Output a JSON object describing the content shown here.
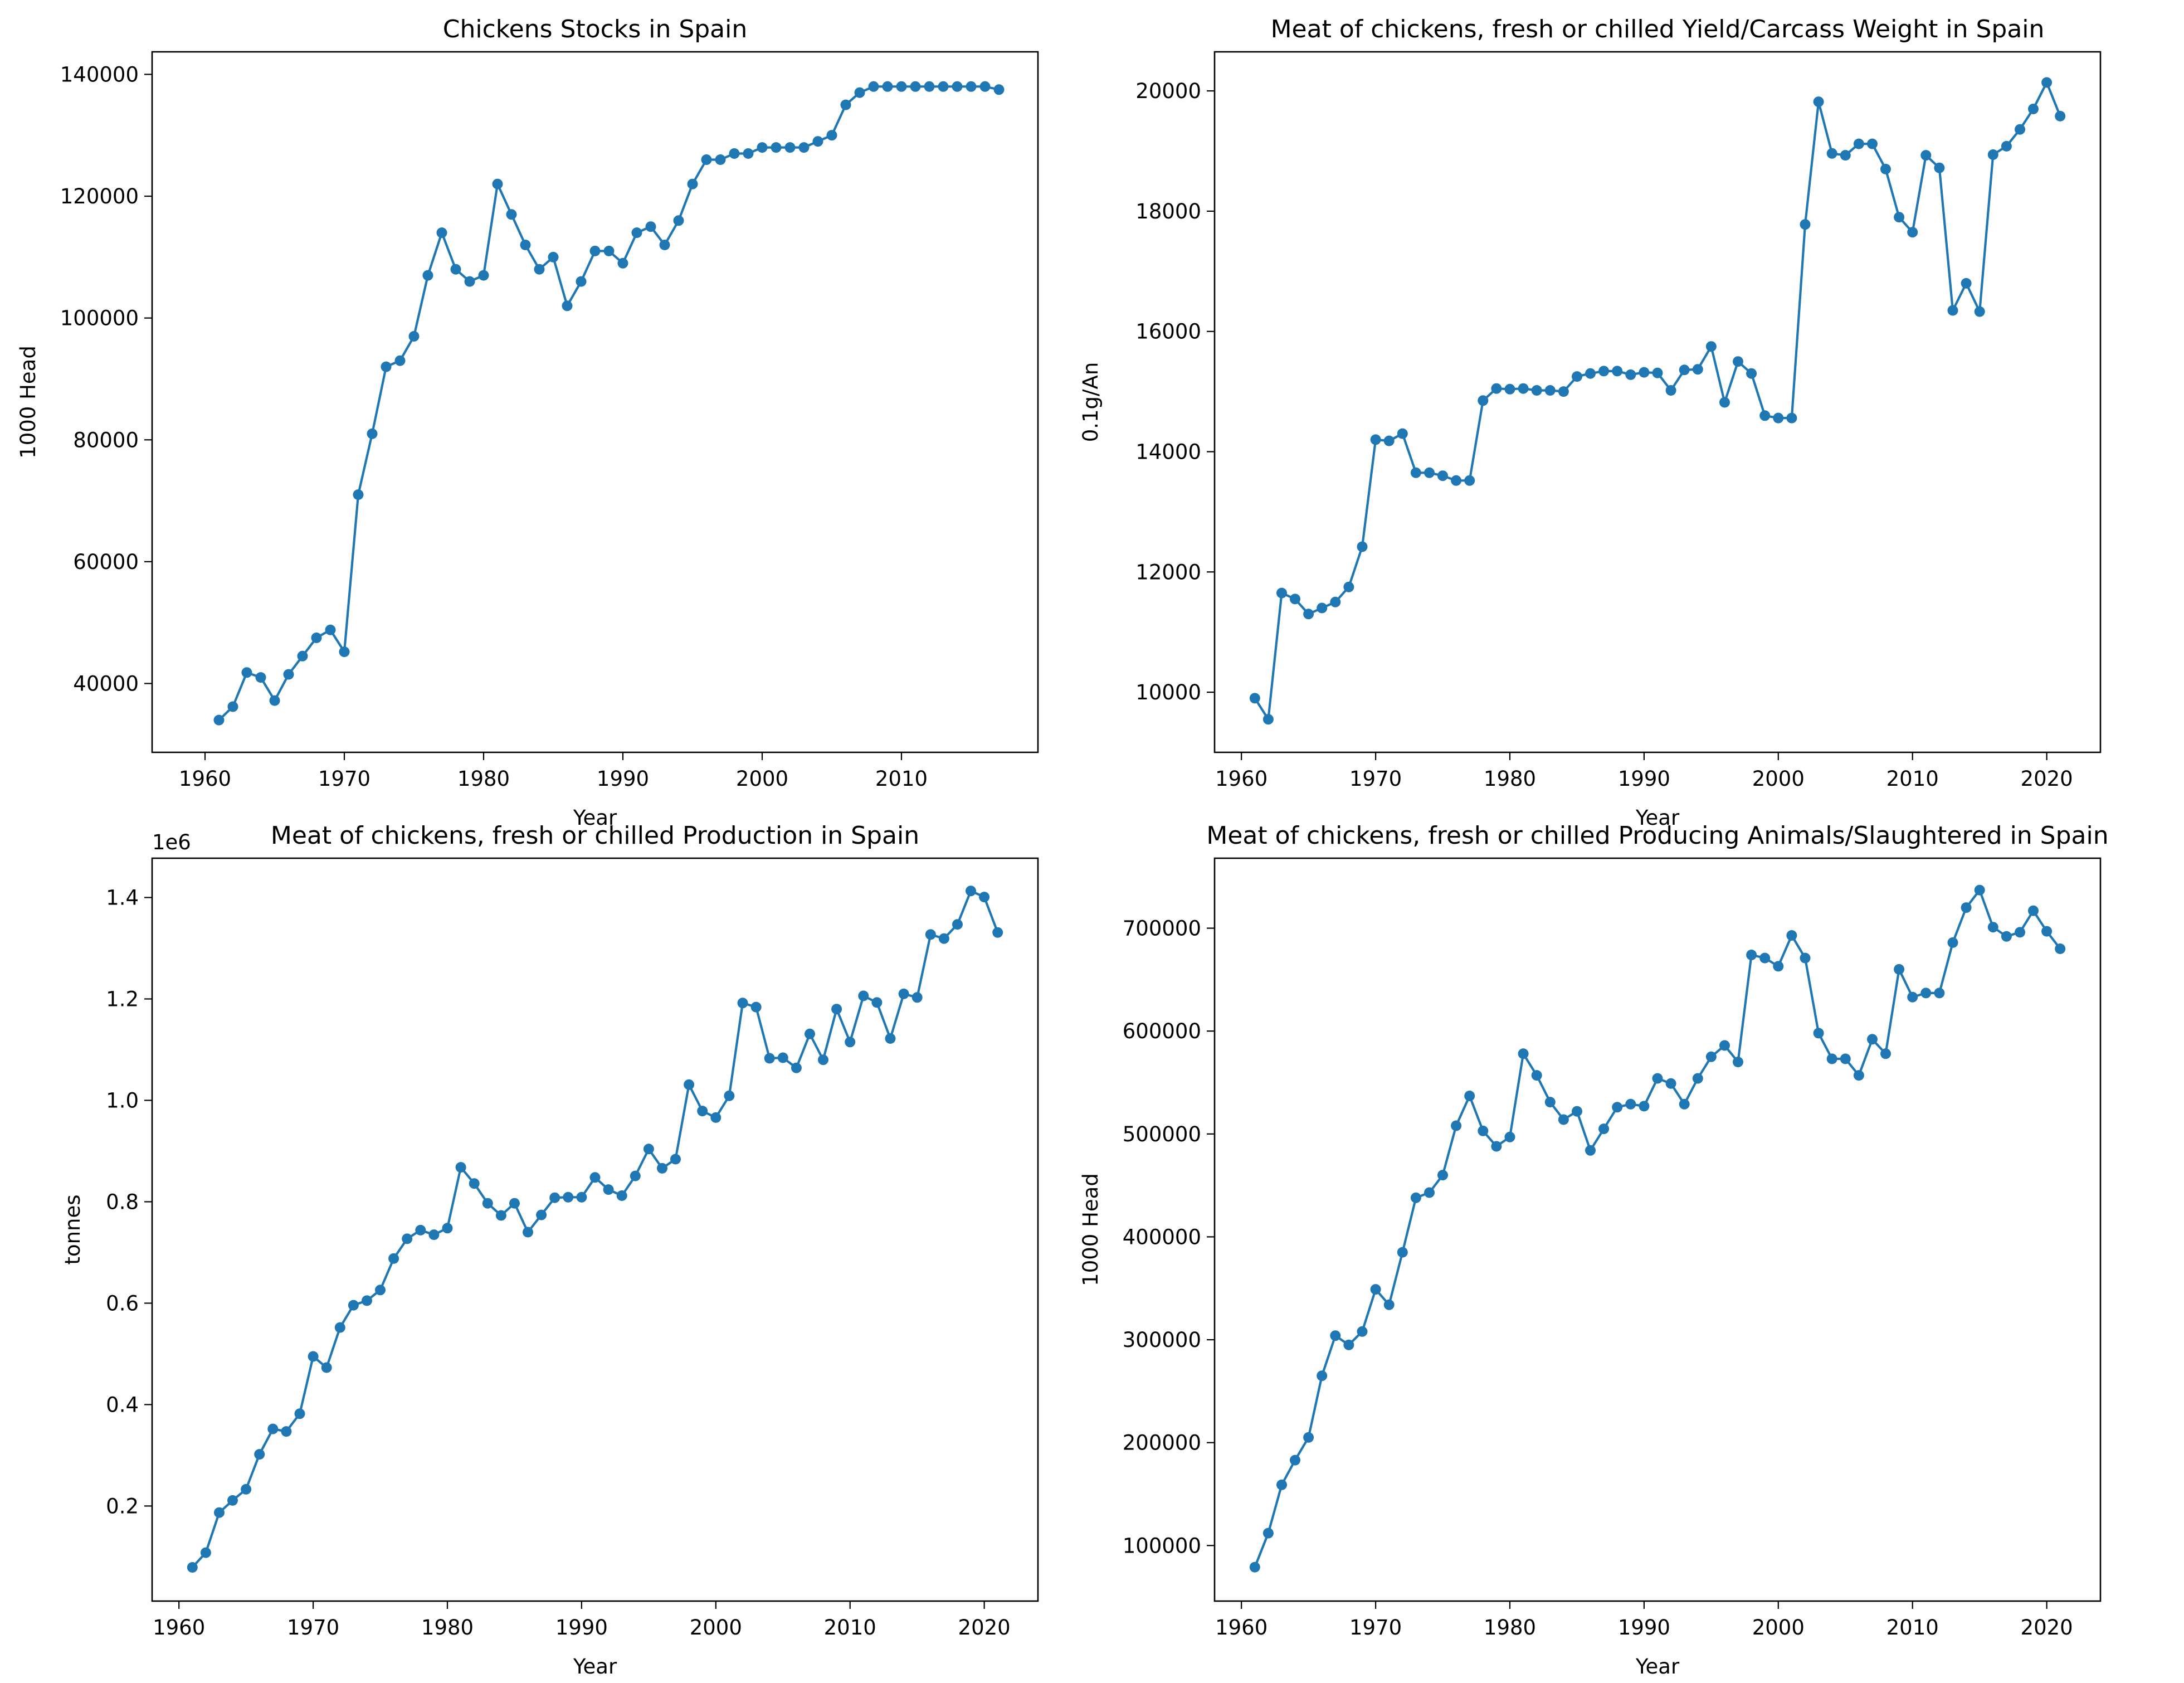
{
  "colors": {
    "series": "#1f77b4",
    "axes": "#000000",
    "background": "#ffffff"
  },
  "chart_data": [
    {
      "type": "line",
      "title": "Chickens Stocks in Spain",
      "xlabel": "Year",
      "ylabel": "1000 Head",
      "offset_label": "",
      "xlim": [
        1956.2,
        2019.8
      ],
      "ylim": [
        28700,
        143700
      ],
      "xticks": [
        1960,
        1970,
        1980,
        1990,
        2000,
        2010
      ],
      "xtick_labels": [
        "1960",
        "1970",
        "1980",
        "1990",
        "2000",
        "2010"
      ],
      "yticks": [
        40000,
        60000,
        80000,
        100000,
        120000,
        140000
      ],
      "ytick_labels": [
        "40000",
        "60000",
        "80000",
        "100000",
        "120000",
        "140000"
      ],
      "grid": false,
      "series": [
        {
          "x": [
            1961,
            1962,
            1963,
            1964,
            1965,
            1966,
            1967,
            1968,
            1969,
            1970,
            1971,
            1972,
            1973,
            1974,
            1975,
            1976,
            1977,
            1978,
            1979,
            1980,
            1981,
            1982,
            1983,
            1984,
            1985,
            1986,
            1987,
            1988,
            1989,
            1990,
            1991,
            1992,
            1993,
            1994,
            1995,
            1996,
            1997,
            1998,
            1999,
            2000,
            2001,
            2002,
            2003,
            2004,
            2005,
            2006,
            2007,
            2008,
            2009,
            2010,
            2011,
            2012,
            2013,
            2014,
            2015,
            2016,
            2017
          ],
          "y": [
            34000,
            36200,
            41800,
            41000,
            37200,
            41500,
            44500,
            47500,
            48800,
            45200,
            71000,
            81000,
            92000,
            93000,
            97000,
            107000,
            114000,
            108000,
            106000,
            107000,
            122000,
            117000,
            112000,
            108000,
            110000,
            102000,
            106000,
            111000,
            111000,
            109000,
            114000,
            115000,
            112000,
            116000,
            122000,
            126000,
            126000,
            127000,
            127000,
            128000,
            128000,
            128000,
            128000,
            129000,
            130000,
            135000,
            137000,
            138000,
            138000,
            138000,
            138000,
            138000,
            138000,
            138000,
            138000,
            138000,
            137500
          ]
        }
      ]
    },
    {
      "type": "line",
      "title": "Meat of chickens, fresh or chilled Yield/Carcass Weight in Spain",
      "xlabel": "Year",
      "ylabel": "0.1g/An",
      "offset_label": "",
      "xlim": [
        1958.0,
        2024.0
      ],
      "ylim": [
        9000,
        20650
      ],
      "xticks": [
        1960,
        1970,
        1980,
        1990,
        2000,
        2010,
        2020
      ],
      "xtick_labels": [
        "1960",
        "1970",
        "1980",
        "1990",
        "2000",
        "2010",
        "2020"
      ],
      "yticks": [
        10000,
        12000,
        14000,
        16000,
        18000,
        20000
      ],
      "ytick_labels": [
        "10000",
        "12000",
        "14000",
        "16000",
        "18000",
        "20000"
      ],
      "grid": false,
      "series": [
        {
          "x": [
            1961,
            1962,
            1963,
            1964,
            1965,
            1966,
            1967,
            1968,
            1969,
            1970,
            1971,
            1972,
            1973,
            1974,
            1975,
            1976,
            1977,
            1978,
            1979,
            1980,
            1981,
            1982,
            1983,
            1984,
            1985,
            1986,
            1987,
            1988,
            1989,
            1990,
            1991,
            1992,
            1993,
            1994,
            1995,
            1996,
            1997,
            1998,
            1999,
            2000,
            2001,
            2002,
            2003,
            2004,
            2005,
            2006,
            2007,
            2008,
            2009,
            2010,
            2011,
            2012,
            2013,
            2014,
            2015,
            2016,
            2017,
            2018,
            2019,
            2020,
            2021
          ],
          "y": [
            9900,
            9550,
            11650,
            11550,
            11300,
            11400,
            11500,
            11750,
            12420,
            14200,
            14180,
            14300,
            13650,
            13650,
            13600,
            13520,
            13520,
            14850,
            15050,
            15040,
            15050,
            15020,
            15020,
            15000,
            15250,
            15300,
            15340,
            15340,
            15280,
            15320,
            15310,
            15020,
            15360,
            15370,
            15750,
            14820,
            15500,
            15300,
            14600,
            14560,
            14560,
            17780,
            19820,
            18960,
            18930,
            19120,
            19120,
            18700,
            17900,
            17650,
            18930,
            18720,
            16350,
            16800,
            16330,
            18940,
            19080,
            19360,
            19700,
            20140,
            19580
          ]
        }
      ]
    },
    {
      "type": "line",
      "title": "Meat of chickens, fresh or chilled Production in Spain",
      "xlabel": "Year",
      "ylabel": "tonnes",
      "offset_label": "1e6",
      "xlim": [
        1958.0,
        2024.0
      ],
      "ylim": [
        0.0125,
        1.4775
      ],
      "xticks": [
        1960,
        1970,
        1980,
        1990,
        2000,
        2010,
        2020
      ],
      "xtick_labels": [
        "1960",
        "1970",
        "1980",
        "1990",
        "2000",
        "2010",
        "2020"
      ],
      "yticks": [
        0.2,
        0.4,
        0.6,
        0.8,
        1.0,
        1.2,
        1.4
      ],
      "ytick_labels": [
        "0.2",
        "0.4",
        "0.6",
        "0.8",
        "1.0",
        "1.2",
        "1.4"
      ],
      "grid": false,
      "series": [
        {
          "x": [
            1961,
            1962,
            1963,
            1964,
            1965,
            1966,
            1967,
            1968,
            1969,
            1970,
            1971,
            1972,
            1973,
            1974,
            1975,
            1976,
            1977,
            1978,
            1979,
            1980,
            1981,
            1982,
            1983,
            1984,
            1985,
            1986,
            1987,
            1988,
            1989,
            1990,
            1991,
            1992,
            1993,
            1994,
            1995,
            1996,
            1997,
            1998,
            1999,
            2000,
            2001,
            2002,
            2003,
            2004,
            2005,
            2006,
            2007,
            2008,
            2009,
            2010,
            2011,
            2012,
            2013,
            2014,
            2015,
            2016,
            2017,
            2018,
            2019,
            2020,
            2021
          ],
          "y": [
            0.079,
            0.108,
            0.187,
            0.211,
            0.233,
            0.302,
            0.352,
            0.347,
            0.382,
            0.495,
            0.473,
            0.552,
            0.596,
            0.605,
            0.626,
            0.688,
            0.727,
            0.744,
            0.735,
            0.748,
            0.868,
            0.836,
            0.797,
            0.773,
            0.797,
            0.74,
            0.774,
            0.808,
            0.809,
            0.809,
            0.848,
            0.824,
            0.812,
            0.851,
            0.904,
            0.866,
            0.884,
            1.031,
            0.979,
            0.966,
            1.009,
            1.192,
            1.184,
            1.083,
            1.084,
            1.064,
            1.131,
            1.08,
            1.18,
            1.115,
            1.206,
            1.193,
            1.122,
            1.21,
            1.203,
            1.327,
            1.319,
            1.347,
            1.413,
            1.401,
            1.331
          ]
        }
      ]
    },
    {
      "type": "line",
      "title": "Meat of chickens, fresh or chilled Producing Animals/Slaughtered in Spain",
      "xlabel": "Year",
      "ylabel": "1000 Head",
      "offset_label": "",
      "xlim": [
        1958.0,
        2024.0
      ],
      "ylim": [
        46000,
        768000
      ],
      "xticks": [
        1960,
        1970,
        1980,
        1990,
        2000,
        2010,
        2020
      ],
      "xtick_labels": [
        "1960",
        "1970",
        "1980",
        "1990",
        "2000",
        "2010",
        "2020"
      ],
      "yticks": [
        100000,
        200000,
        300000,
        400000,
        500000,
        600000,
        700000
      ],
      "ytick_labels": [
        "100000",
        "200000",
        "300000",
        "400000",
        "500000",
        "600000",
        "700000"
      ],
      "grid": false,
      "series": [
        {
          "x": [
            1961,
            1962,
            1963,
            1964,
            1965,
            1966,
            1967,
            1968,
            1969,
            1970,
            1971,
            1972,
            1973,
            1974,
            1975,
            1976,
            1977,
            1978,
            1979,
            1980,
            1981,
            1982,
            1983,
            1984,
            1985,
            1986,
            1987,
            1988,
            1989,
            1990,
            1991,
            1992,
            1993,
            1994,
            1995,
            1996,
            1997,
            1998,
            1999,
            2000,
            2001,
            2002,
            2003,
            2004,
            2005,
            2006,
            2007,
            2008,
            2009,
            2010,
            2011,
            2012,
            2013,
            2014,
            2015,
            2016,
            2017,
            2018,
            2019,
            2020,
            2021
          ],
          "y": [
            79000,
            112000,
            159000,
            183000,
            205000,
            265000,
            304000,
            295000,
            308000,
            349000,
            334000,
            385000,
            438000,
            443000,
            460000,
            508000,
            537000,
            503000,
            488000,
            497000,
            578000,
            557000,
            531000,
            514000,
            522000,
            484000,
            505000,
            526000,
            529000,
            527000,
            554000,
            549000,
            529000,
            554000,
            575000,
            586000,
            570000,
            674000,
            671000,
            663000,
            693000,
            671000,
            598000,
            573000,
            573000,
            557000,
            592000,
            578000,
            660000,
            633000,
            637000,
            637000,
            686000,
            720000,
            737000,
            701000,
            692000,
            696000,
            717000,
            697000,
            680000
          ]
        }
      ]
    }
  ]
}
